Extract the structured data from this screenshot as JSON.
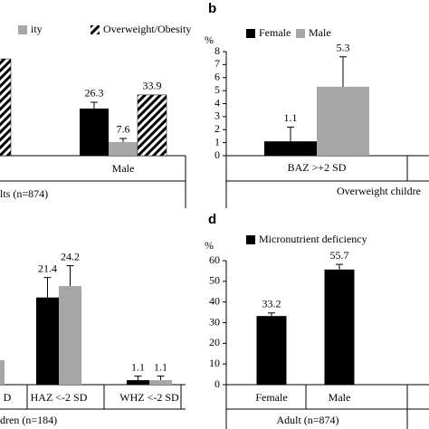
{
  "chart_data": [
    {
      "type": "bar",
      "caption": "lts (n=874)",
      "categories": [
        null,
        "Male"
      ],
      "series": [
        {
          "name": null,
          "color": "#000000",
          "values": [
            null,
            26.3
          ],
          "errors": [
            null,
            3.5
          ],
          "value_labels": [
            null,
            "26.3"
          ]
        },
        {
          "name": "ity",
          "color": "#a6a6a6",
          "values": [
            null,
            7.6
          ],
          "errors": [
            null,
            2
          ],
          "value_labels": [
            null,
            "7.6"
          ]
        },
        {
          "name": "Overweight/Obesity",
          "color": "hatch",
          "values": [
            54,
            33.9
          ],
          "value_labels": [
            null,
            "33.9"
          ]
        }
      ]
    },
    {
      "type": "bar",
      "label": "b",
      "ylabel": "%",
      "caption": "Overweight childre",
      "categories": [
        "BAZ >+2 SD"
      ],
      "series": [
        {
          "name": "Female",
          "color": "#000000",
          "values": [
            1.1
          ],
          "errors": [
            1.1
          ]
        },
        {
          "name": "Male",
          "color": "#a6a6a6",
          "values": [
            5.3
          ],
          "errors": [
            2.3
          ]
        }
      ],
      "ylim": [
        0,
        8
      ],
      "yticks": [
        0,
        1,
        2,
        3,
        4,
        5,
        6,
        7,
        8
      ]
    },
    {
      "type": "bar",
      "caption": "dren (n=184)",
      "categories": [
        "D",
        "HAZ <-2 SD",
        "WHZ <-2 SD"
      ],
      "series": [
        {
          "name": null,
          "color": "#000000",
          "values": [
            null,
            21.4,
            1.1
          ],
          "errors": [
            null,
            4.9,
            1
          ],
          "value_labels": [
            null,
            "21.4",
            "1.1"
          ]
        },
        {
          "name": null,
          "color": "#a6a6a6",
          "values": [
            6,
            24.2,
            1.1
          ],
          "errors": [
            null,
            5,
            1
          ],
          "value_labels": [
            null,
            "24.2",
            "1.1"
          ]
        }
      ]
    },
    {
      "type": "bar",
      "label": "d",
      "ylabel": "%",
      "caption": "Adult (n=874)",
      "categories": [
        "Female",
        "Male"
      ],
      "series": [
        {
          "name": "Micronutrient deficiency",
          "color": "#000000",
          "values": [
            33.2,
            55.7
          ],
          "errors": [
            1.5,
            2.5
          ]
        }
      ],
      "ylim": [
        0,
        60
      ],
      "yticks": [
        0,
        10,
        20,
        30,
        40,
        50,
        60
      ]
    }
  ]
}
